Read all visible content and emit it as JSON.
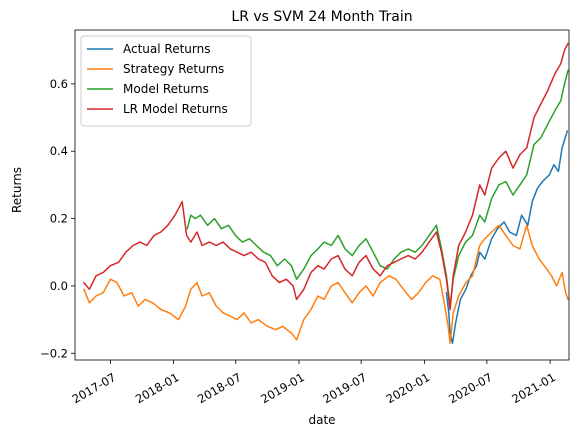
{
  "chart_data": {
    "type": "line",
    "title": "LR vs SVM 24 Month Train",
    "xlabel": "date",
    "ylabel": "Returns",
    "x_range": [
      "2017-03-20",
      "2021-02-25"
    ],
    "ylim": [
      -0.22,
      0.76
    ],
    "x_ticks": [
      "2017-07",
      "2018-01",
      "2018-07",
      "2019-01",
      "2019-07",
      "2020-01",
      "2020-07",
      "2021-01"
    ],
    "y_ticks": [
      "−0.2",
      "0.0",
      "0.2",
      "0.4",
      "0.6"
    ],
    "y_tick_values": [
      -0.2,
      0.0,
      0.2,
      0.4,
      0.6
    ],
    "grid": false,
    "legend_position": "top-left",
    "series": [
      {
        "name": "Actual Returns",
        "color": "#1f77b4",
        "points": [
          [
            "2020-03-05",
            -0.02
          ],
          [
            "2020-03-12",
            -0.08
          ],
          [
            "2020-03-16",
            -0.14
          ],
          [
            "2020-03-23",
            -0.17
          ],
          [
            "2020-04-01",
            -0.11
          ],
          [
            "2020-04-15",
            -0.04
          ],
          [
            "2020-05-01",
            -0.01
          ],
          [
            "2020-05-15",
            0.03
          ],
          [
            "2020-06-01",
            0.06
          ],
          [
            "2020-06-10",
            0.1
          ],
          [
            "2020-06-25",
            0.08
          ],
          [
            "2020-07-15",
            0.14
          ],
          [
            "2020-08-01",
            0.17
          ],
          [
            "2020-08-20",
            0.19
          ],
          [
            "2020-09-05",
            0.16
          ],
          [
            "2020-09-25",
            0.15
          ],
          [
            "2020-10-10",
            0.21
          ],
          [
            "2020-10-28",
            0.18
          ],
          [
            "2020-11-10",
            0.25
          ],
          [
            "2020-11-25",
            0.29
          ],
          [
            "2020-12-10",
            0.31
          ],
          [
            "2020-12-30",
            0.33
          ],
          [
            "2021-01-12",
            0.36
          ],
          [
            "2021-01-25",
            0.34
          ],
          [
            "2021-02-05",
            0.41
          ],
          [
            "2021-02-20",
            0.46
          ]
        ]
      },
      {
        "name": "Strategy Returns",
        "color": "#ff7f0e",
        "points": [
          [
            "2017-04-15",
            -0.01
          ],
          [
            "2017-05-01",
            -0.05
          ],
          [
            "2017-05-20",
            -0.03
          ],
          [
            "2017-06-10",
            -0.02
          ],
          [
            "2017-07-01",
            0.02
          ],
          [
            "2017-07-20",
            0.01
          ],
          [
            "2017-08-10",
            -0.03
          ],
          [
            "2017-09-01",
            -0.02
          ],
          [
            "2017-09-20",
            -0.06
          ],
          [
            "2017-10-10",
            -0.04
          ],
          [
            "2017-11-01",
            -0.05
          ],
          [
            "2017-11-25",
            -0.07
          ],
          [
            "2017-12-20",
            -0.08
          ],
          [
            "2018-01-15",
            -0.1
          ],
          [
            "2018-02-05",
            -0.06
          ],
          [
            "2018-02-20",
            -0.01
          ],
          [
            "2018-03-10",
            0.01
          ],
          [
            "2018-03-25",
            -0.03
          ],
          [
            "2018-04-15",
            -0.02
          ],
          [
            "2018-05-05",
            -0.06
          ],
          [
            "2018-05-25",
            -0.08
          ],
          [
            "2018-06-15",
            -0.09
          ],
          [
            "2018-07-05",
            -0.1
          ],
          [
            "2018-07-25",
            -0.08
          ],
          [
            "2018-08-15",
            -0.11
          ],
          [
            "2018-09-05",
            -0.1
          ],
          [
            "2018-10-01",
            -0.12
          ],
          [
            "2018-10-25",
            -0.13
          ],
          [
            "2018-11-15",
            -0.12
          ],
          [
            "2018-12-10",
            -0.14
          ],
          [
            "2018-12-25",
            -0.16
          ],
          [
            "2019-01-15",
            -0.1
          ],
          [
            "2019-02-05",
            -0.07
          ],
          [
            "2019-02-25",
            -0.03
          ],
          [
            "2019-03-15",
            -0.04
          ],
          [
            "2019-04-05",
            0.0
          ],
          [
            "2019-04-25",
            0.01
          ],
          [
            "2019-05-15",
            -0.02
          ],
          [
            "2019-06-05",
            -0.05
          ],
          [
            "2019-06-25",
            -0.02
          ],
          [
            "2019-07-15",
            0.0
          ],
          [
            "2019-08-05",
            -0.03
          ],
          [
            "2019-08-25",
            0.01
          ],
          [
            "2019-09-20",
            0.03
          ],
          [
            "2019-10-10",
            0.02
          ],
          [
            "2019-11-01",
            -0.01
          ],
          [
            "2019-11-25",
            -0.04
          ],
          [
            "2019-12-15",
            -0.02
          ],
          [
            "2020-01-05",
            0.01
          ],
          [
            "2020-01-25",
            0.03
          ],
          [
            "2020-02-15",
            0.02
          ],
          [
            "2020-02-28",
            -0.05
          ],
          [
            "2020-03-10",
            -0.12
          ],
          [
            "2020-03-16",
            -0.17
          ],
          [
            "2020-03-25",
            -0.08
          ],
          [
            "2020-04-10",
            -0.03
          ],
          [
            "2020-05-01",
            0.01
          ],
          [
            "2020-05-20",
            0.03
          ],
          [
            "2020-06-10",
            0.12
          ],
          [
            "2020-06-25",
            0.14
          ],
          [
            "2020-07-15",
            0.16
          ],
          [
            "2020-08-05",
            0.18
          ],
          [
            "2020-08-25",
            0.15
          ],
          [
            "2020-09-15",
            0.12
          ],
          [
            "2020-10-05",
            0.11
          ],
          [
            "2020-10-25",
            0.18
          ],
          [
            "2020-11-10",
            0.12
          ],
          [
            "2020-11-30",
            0.08
          ],
          [
            "2020-12-15",
            0.06
          ],
          [
            "2021-01-05",
            0.03
          ],
          [
            "2021-01-20",
            0.0
          ],
          [
            "2021-02-05",
            0.04
          ],
          [
            "2021-02-15",
            -0.02
          ],
          [
            "2021-02-22",
            -0.04
          ]
        ]
      },
      {
        "name": "Model Returns",
        "color": "#2ca02c",
        "points": [
          [
            "2018-02-10",
            0.17
          ],
          [
            "2018-02-20",
            0.21
          ],
          [
            "2018-03-05",
            0.2
          ],
          [
            "2018-03-20",
            0.21
          ],
          [
            "2018-04-10",
            0.18
          ],
          [
            "2018-04-30",
            0.2
          ],
          [
            "2018-05-20",
            0.17
          ],
          [
            "2018-06-10",
            0.18
          ],
          [
            "2018-06-30",
            0.15
          ],
          [
            "2018-07-20",
            0.13
          ],
          [
            "2018-08-10",
            0.14
          ],
          [
            "2018-08-30",
            0.12
          ],
          [
            "2018-09-20",
            0.1
          ],
          [
            "2018-10-10",
            0.09
          ],
          [
            "2018-10-30",
            0.06
          ],
          [
            "2018-11-20",
            0.08
          ],
          [
            "2018-12-10",
            0.06
          ],
          [
            "2018-12-25",
            0.02
          ],
          [
            "2019-01-15",
            0.05
          ],
          [
            "2019-02-05",
            0.09
          ],
          [
            "2019-02-25",
            0.11
          ],
          [
            "2019-03-15",
            0.13
          ],
          [
            "2019-04-05",
            0.12
          ],
          [
            "2019-04-25",
            0.15
          ],
          [
            "2019-05-15",
            0.11
          ],
          [
            "2019-06-05",
            0.09
          ],
          [
            "2019-06-25",
            0.12
          ],
          [
            "2019-07-15",
            0.14
          ],
          [
            "2019-08-05",
            0.1
          ],
          [
            "2019-08-25",
            0.06
          ],
          [
            "2019-09-15",
            0.05
          ],
          [
            "2019-10-05",
            0.08
          ],
          [
            "2019-10-25",
            0.1
          ],
          [
            "2019-11-15",
            0.11
          ],
          [
            "2019-12-05",
            0.1
          ],
          [
            "2019-12-25",
            0.12
          ],
          [
            "2020-01-15",
            0.15
          ],
          [
            "2020-02-05",
            0.18
          ],
          [
            "2020-02-20",
            0.11
          ],
          [
            "2020-03-05",
            0.03
          ],
          [
            "2020-03-16",
            -0.06
          ],
          [
            "2020-03-25",
            0.02
          ],
          [
            "2020-04-10",
            0.09
          ],
          [
            "2020-04-30",
            0.13
          ],
          [
            "2020-05-20",
            0.15
          ],
          [
            "2020-06-10",
            0.21
          ],
          [
            "2020-06-25",
            0.19
          ],
          [
            "2020-07-15",
            0.26
          ],
          [
            "2020-08-05",
            0.3
          ],
          [
            "2020-08-25",
            0.31
          ],
          [
            "2020-09-15",
            0.27
          ],
          [
            "2020-10-05",
            0.3
          ],
          [
            "2020-10-25",
            0.33
          ],
          [
            "2020-11-15",
            0.42
          ],
          [
            "2020-12-05",
            0.44
          ],
          [
            "2020-12-25",
            0.48
          ],
          [
            "2021-01-15",
            0.52
          ],
          [
            "2021-02-01",
            0.55
          ],
          [
            "2021-02-12",
            0.6
          ],
          [
            "2021-02-22",
            0.64
          ]
        ]
      },
      {
        "name": "LR Model Returns",
        "color": "#d62728",
        "points": [
          [
            "2017-04-15",
            0.01
          ],
          [
            "2017-05-01",
            -0.01
          ],
          [
            "2017-05-20",
            0.03
          ],
          [
            "2017-06-10",
            0.04
          ],
          [
            "2017-07-01",
            0.06
          ],
          [
            "2017-07-25",
            0.07
          ],
          [
            "2017-08-15",
            0.1
          ],
          [
            "2017-09-05",
            0.12
          ],
          [
            "2017-09-25",
            0.13
          ],
          [
            "2017-10-15",
            0.12
          ],
          [
            "2017-11-05",
            0.15
          ],
          [
            "2017-11-25",
            0.16
          ],
          [
            "2017-12-15",
            0.18
          ],
          [
            "2018-01-05",
            0.21
          ],
          [
            "2018-01-26",
            0.25
          ],
          [
            "2018-02-08",
            0.15
          ],
          [
            "2018-02-20",
            0.13
          ],
          [
            "2018-03-10",
            0.16
          ],
          [
            "2018-03-25",
            0.12
          ],
          [
            "2018-04-15",
            0.13
          ],
          [
            "2018-05-05",
            0.12
          ],
          [
            "2018-05-25",
            0.13
          ],
          [
            "2018-06-15",
            0.11
          ],
          [
            "2018-07-05",
            0.1
          ],
          [
            "2018-07-25",
            0.09
          ],
          [
            "2018-08-15",
            0.1
          ],
          [
            "2018-09-05",
            0.08
          ],
          [
            "2018-09-25",
            0.07
          ],
          [
            "2018-10-15",
            0.03
          ],
          [
            "2018-11-05",
            0.01
          ],
          [
            "2018-11-25",
            0.02
          ],
          [
            "2018-12-15",
            0.0
          ],
          [
            "2018-12-25",
            -0.04
          ],
          [
            "2019-01-15",
            -0.01
          ],
          [
            "2019-02-05",
            0.04
          ],
          [
            "2019-02-25",
            0.06
          ],
          [
            "2019-03-15",
            0.05
          ],
          [
            "2019-04-05",
            0.08
          ],
          [
            "2019-04-25",
            0.09
          ],
          [
            "2019-05-15",
            0.05
          ],
          [
            "2019-06-05",
            0.03
          ],
          [
            "2019-06-25",
            0.07
          ],
          [
            "2019-07-15",
            0.09
          ],
          [
            "2019-08-05",
            0.05
          ],
          [
            "2019-08-25",
            0.03
          ],
          [
            "2019-09-15",
            0.06
          ],
          [
            "2019-10-05",
            0.07
          ],
          [
            "2019-10-25",
            0.08
          ],
          [
            "2019-11-15",
            0.09
          ],
          [
            "2019-12-05",
            0.08
          ],
          [
            "2019-12-25",
            0.1
          ],
          [
            "2020-01-15",
            0.13
          ],
          [
            "2020-02-05",
            0.16
          ],
          [
            "2020-02-20",
            0.1
          ],
          [
            "2020-03-05",
            0.02
          ],
          [
            "2020-03-16",
            -0.07
          ],
          [
            "2020-03-25",
            0.03
          ],
          [
            "2020-04-10",
            0.12
          ],
          [
            "2020-04-30",
            0.16
          ],
          [
            "2020-05-20",
            0.21
          ],
          [
            "2020-06-10",
            0.3
          ],
          [
            "2020-06-25",
            0.27
          ],
          [
            "2020-07-15",
            0.35
          ],
          [
            "2020-08-05",
            0.38
          ],
          [
            "2020-08-25",
            0.4
          ],
          [
            "2020-09-15",
            0.35
          ],
          [
            "2020-10-05",
            0.39
          ],
          [
            "2020-10-25",
            0.41
          ],
          [
            "2020-11-15",
            0.5
          ],
          [
            "2020-12-05",
            0.54
          ],
          [
            "2020-12-25",
            0.58
          ],
          [
            "2021-01-15",
            0.63
          ],
          [
            "2021-02-01",
            0.66
          ],
          [
            "2021-02-12",
            0.7
          ],
          [
            "2021-02-22",
            0.72
          ]
        ]
      }
    ]
  }
}
